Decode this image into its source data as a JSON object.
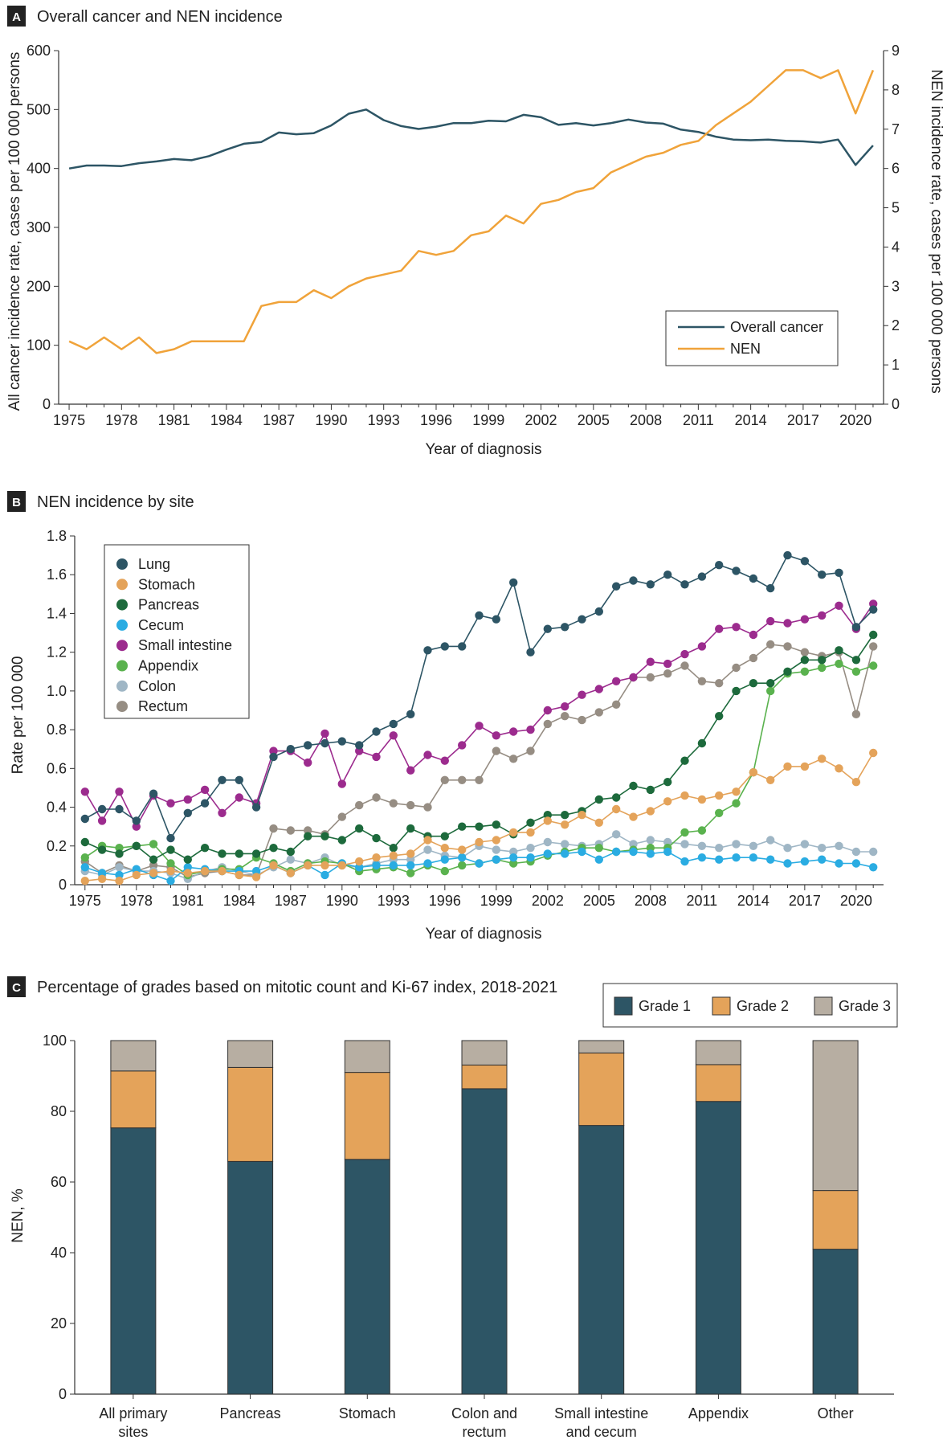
{
  "chart_data": [
    {
      "panel": "A",
      "type": "line",
      "title": "Overall cancer and NEN incidence",
      "xlabel": "Year of diagnosis",
      "ylabel_left": "All cancer incidence rate, cases per 100 000 persons",
      "ylabel_right": "NEN incidence rate, cases per 100 000 persons",
      "x": [
        1975,
        1976,
        1977,
        1978,
        1979,
        1980,
        1981,
        1982,
        1983,
        1984,
        1985,
        1986,
        1987,
        1988,
        1989,
        1990,
        1991,
        1992,
        1993,
        1994,
        1995,
        1996,
        1997,
        1998,
        1999,
        2000,
        2001,
        2002,
        2003,
        2004,
        2005,
        2006,
        2007,
        2008,
        2009,
        2010,
        2011,
        2012,
        2013,
        2014,
        2015,
        2016,
        2017,
        2018,
        2019,
        2020,
        2021
      ],
      "xticks": [
        1975,
        1978,
        1981,
        1984,
        1987,
        1990,
        1993,
        1996,
        1999,
        2002,
        2005,
        2008,
        2011,
        2014,
        2017,
        2020
      ],
      "ylim_left": [
        0,
        600
      ],
      "yticks_left": [
        0,
        100,
        200,
        300,
        400,
        500,
        600
      ],
      "ylim_right": [
        0,
        9
      ],
      "yticks_right": [
        0,
        1,
        2,
        3,
        4,
        5,
        6,
        7,
        8,
        9
      ],
      "legend_position": "bottom-right",
      "series": [
        {
          "name": "Overall cancer",
          "axis": "left",
          "color": "#2d5565",
          "values": [
            400,
            405,
            405,
            404,
            409,
            412,
            416,
            414,
            421,
            432,
            442,
            445,
            461,
            458,
            460,
            473,
            493,
            500,
            482,
            472,
            467,
            471,
            477,
            477,
            481,
            480,
            491,
            487,
            474,
            477,
            473,
            477,
            483,
            478,
            476,
            466,
            462,
            454,
            449,
            448,
            449,
            447,
            446,
            444,
            449,
            406,
            439
          ]
        },
        {
          "name": "NEN",
          "axis": "right",
          "color": "#f0a33a",
          "values": [
            1.6,
            1.4,
            1.7,
            1.4,
            1.7,
            1.3,
            1.4,
            1.6,
            1.6,
            1.6,
            1.6,
            2.5,
            2.6,
            2.6,
            2.9,
            2.7,
            3.0,
            3.2,
            3.3,
            3.4,
            3.9,
            3.8,
            3.9,
            4.3,
            4.4,
            4.8,
            4.6,
            5.1,
            5.2,
            5.4,
            5.5,
            5.9,
            6.1,
            6.3,
            6.4,
            6.6,
            6.7,
            7.1,
            7.4,
            7.7,
            8.1,
            8.5,
            8.5,
            8.3,
            8.5,
            7.4,
            8.5
          ]
        }
      ]
    },
    {
      "panel": "B",
      "type": "line",
      "title": "NEN incidence by site",
      "xlabel": "Year of diagnosis",
      "ylabel": "Rate per 100 000",
      "x": [
        1975,
        1976,
        1977,
        1978,
        1979,
        1980,
        1981,
        1982,
        1983,
        1984,
        1985,
        1986,
        1987,
        1988,
        1989,
        1990,
        1991,
        1992,
        1993,
        1994,
        1995,
        1996,
        1997,
        1998,
        1999,
        2000,
        2001,
        2002,
        2003,
        2004,
        2005,
        2006,
        2007,
        2008,
        2009,
        2010,
        2011,
        2012,
        2013,
        2014,
        2015,
        2016,
        2017,
        2018,
        2019,
        2020,
        2021
      ],
      "xticks": [
        1975,
        1978,
        1981,
        1984,
        1987,
        1990,
        1993,
        1996,
        1999,
        2002,
        2005,
        2008,
        2011,
        2014,
        2017,
        2020
      ],
      "ylim": [
        0,
        1.8
      ],
      "yticks": [
        "0",
        "0.2",
        "0.4",
        "0.6",
        "0.8",
        "1.0",
        "1.2",
        "1.4",
        "1.6",
        "1.8"
      ],
      "legend_position": "top-left",
      "series": [
        {
          "name": "Lung",
          "color": "#2d5565",
          "values": [
            0.34,
            0.39,
            0.39,
            0.33,
            0.47,
            0.24,
            0.37,
            0.42,
            0.54,
            0.54,
            0.4,
            0.66,
            0.7,
            0.72,
            0.73,
            0.74,
            0.72,
            0.79,
            0.83,
            0.88,
            1.21,
            1.23,
            1.23,
            1.39,
            1.37,
            1.56,
            1.2,
            1.32,
            1.33,
            1.37,
            1.41,
            1.54,
            1.57,
            1.55,
            1.6,
            1.55,
            1.59,
            1.65,
            1.62,
            1.58,
            1.53,
            1.7,
            1.67,
            1.6,
            1.61,
            1.33,
            1.42
          ]
        },
        {
          "name": "Stomach",
          "color": "#e4a35a",
          "values": [
            0.02,
            0.03,
            0.02,
            0.05,
            0.06,
            0.07,
            0.06,
            0.07,
            0.07,
            0.05,
            0.04,
            0.1,
            0.06,
            0.1,
            0.1,
            0.1,
            0.12,
            0.14,
            0.15,
            0.16,
            0.23,
            0.19,
            0.18,
            0.22,
            0.23,
            0.27,
            0.27,
            0.33,
            0.31,
            0.36,
            0.32,
            0.39,
            0.35,
            0.38,
            0.43,
            0.46,
            0.44,
            0.46,
            0.48,
            0.58,
            0.54,
            0.61,
            0.61,
            0.65,
            0.6,
            0.53,
            0.68
          ]
        },
        {
          "name": "Pancreas",
          "color": "#1d6a3c",
          "values": [
            0.22,
            0.18,
            0.16,
            0.2,
            0.13,
            0.18,
            0.13,
            0.19,
            0.16,
            0.16,
            0.16,
            0.19,
            0.17,
            0.25,
            0.25,
            0.23,
            0.29,
            0.24,
            0.19,
            0.29,
            0.25,
            0.25,
            0.3,
            0.3,
            0.31,
            0.26,
            0.32,
            0.36,
            0.36,
            0.38,
            0.44,
            0.45,
            0.51,
            0.49,
            0.53,
            0.64,
            0.73,
            0.87,
            1.0,
            1.04,
            1.04,
            1.1,
            1.16,
            1.16,
            1.21,
            1.16,
            1.29
          ]
        },
        {
          "name": "Cecum",
          "color": "#2aace2",
          "values": [
            0.09,
            0.06,
            0.05,
            0.08,
            0.05,
            0.02,
            0.09,
            0.08,
            0.07,
            0.07,
            0.07,
            0.1,
            0.06,
            0.1,
            0.05,
            0.11,
            0.09,
            0.1,
            0.1,
            0.1,
            0.11,
            0.13,
            0.14,
            0.11,
            0.13,
            0.14,
            0.14,
            0.16,
            0.16,
            0.17,
            0.13,
            0.17,
            0.17,
            0.16,
            0.17,
            0.12,
            0.14,
            0.13,
            0.14,
            0.14,
            0.13,
            0.11,
            0.12,
            0.13,
            0.11,
            0.11,
            0.09
          ]
        },
        {
          "name": "Small intestine",
          "color": "#9c2b8e",
          "values": [
            0.48,
            0.33,
            0.48,
            0.3,
            0.46,
            0.42,
            0.44,
            0.49,
            0.37,
            0.45,
            0.42,
            0.69,
            0.69,
            0.63,
            0.78,
            0.52,
            0.69,
            0.66,
            0.77,
            0.59,
            0.67,
            0.64,
            0.72,
            0.82,
            0.77,
            0.79,
            0.8,
            0.9,
            0.92,
            0.98,
            1.01,
            1.05,
            1.07,
            1.15,
            1.14,
            1.19,
            1.23,
            1.32,
            1.33,
            1.29,
            1.36,
            1.35,
            1.37,
            1.39,
            1.44,
            1.32,
            1.45
          ]
        },
        {
          "name": "Appendix",
          "color": "#5ab24e",
          "values": [
            0.14,
            0.2,
            0.19,
            0.2,
            0.21,
            0.11,
            0.05,
            0.07,
            0.08,
            0.08,
            0.14,
            0.11,
            0.07,
            0.11,
            0.12,
            0.11,
            0.07,
            0.08,
            0.09,
            0.06,
            0.1,
            0.07,
            0.1,
            0.11,
            0.13,
            0.11,
            0.12,
            0.15,
            0.17,
            0.19,
            0.19,
            0.17,
            0.18,
            0.19,
            0.19,
            0.27,
            0.28,
            0.37,
            0.42,
            0.58,
            1.0,
            1.09,
            1.1,
            1.12,
            1.14,
            1.1,
            1.13
          ]
        },
        {
          "name": "Colon",
          "color": "#9fb6c5",
          "values": [
            0.07,
            0.05,
            0.09,
            0.07,
            0.07,
            0.06,
            0.03,
            0.07,
            0.09,
            0.07,
            0.05,
            0.09,
            0.13,
            0.11,
            0.14,
            0.1,
            0.09,
            0.11,
            0.13,
            0.13,
            0.18,
            0.15,
            0.14,
            0.2,
            0.18,
            0.17,
            0.19,
            0.22,
            0.21,
            0.2,
            0.21,
            0.26,
            0.21,
            0.23,
            0.22,
            0.21,
            0.2,
            0.19,
            0.21,
            0.2,
            0.23,
            0.19,
            0.21,
            0.19,
            0.2,
            0.17,
            0.17
          ]
        },
        {
          "name": "Rectum",
          "color": "#968d83",
          "values": [
            0.12,
            0.06,
            0.1,
            0.07,
            0.1,
            0.09,
            0.04,
            0.06,
            0.07,
            0.05,
            0.05,
            0.29,
            0.28,
            0.28,
            0.26,
            0.35,
            0.41,
            0.45,
            0.42,
            0.41,
            0.4,
            0.54,
            0.54,
            0.54,
            0.69,
            0.65,
            0.69,
            0.83,
            0.87,
            0.85,
            0.89,
            0.93,
            1.07,
            1.07,
            1.09,
            1.13,
            1.05,
            1.04,
            1.12,
            1.17,
            1.24,
            1.23,
            1.2,
            1.18,
            1.2,
            0.88,
            1.23
          ]
        }
      ]
    },
    {
      "panel": "C",
      "type": "bar",
      "stacked": true,
      "title": "Percentage of grades based on mitotic count and Ki-67 index, 2018-2021",
      "ylabel": "NEN, %",
      "ylim": [
        0,
        100
      ],
      "yticks": [
        0,
        20,
        40,
        60,
        80,
        100
      ],
      "legend_position": "top-right",
      "categories": [
        [
          "All primary",
          "sites"
        ],
        [
          "Pancreas"
        ],
        [
          "Stomach"
        ],
        [
          "Colon and",
          "rectum"
        ],
        [
          "Small intestine",
          "and cecum"
        ],
        [
          "Appendix"
        ],
        [
          "Other"
        ]
      ],
      "series": [
        {
          "name": "Grade 1",
          "color": "#2d5565",
          "values": [
            75.3,
            65.8,
            66.4,
            86.4,
            76.0,
            82.8,
            41.0
          ]
        },
        {
          "name": "Grade 2",
          "color": "#e4a35a",
          "values": [
            16.1,
            26.6,
            24.6,
            6.7,
            20.5,
            10.4,
            16.6
          ]
        },
        {
          "name": "Grade 3",
          "color": "#b7aea2",
          "values": [
            8.6,
            7.6,
            9.0,
            6.9,
            3.5,
            6.8,
            42.4
          ]
        }
      ]
    }
  ],
  "panels": {
    "a": {
      "label": "A"
    },
    "b": {
      "label": "B"
    },
    "c": {
      "label": "C"
    }
  }
}
